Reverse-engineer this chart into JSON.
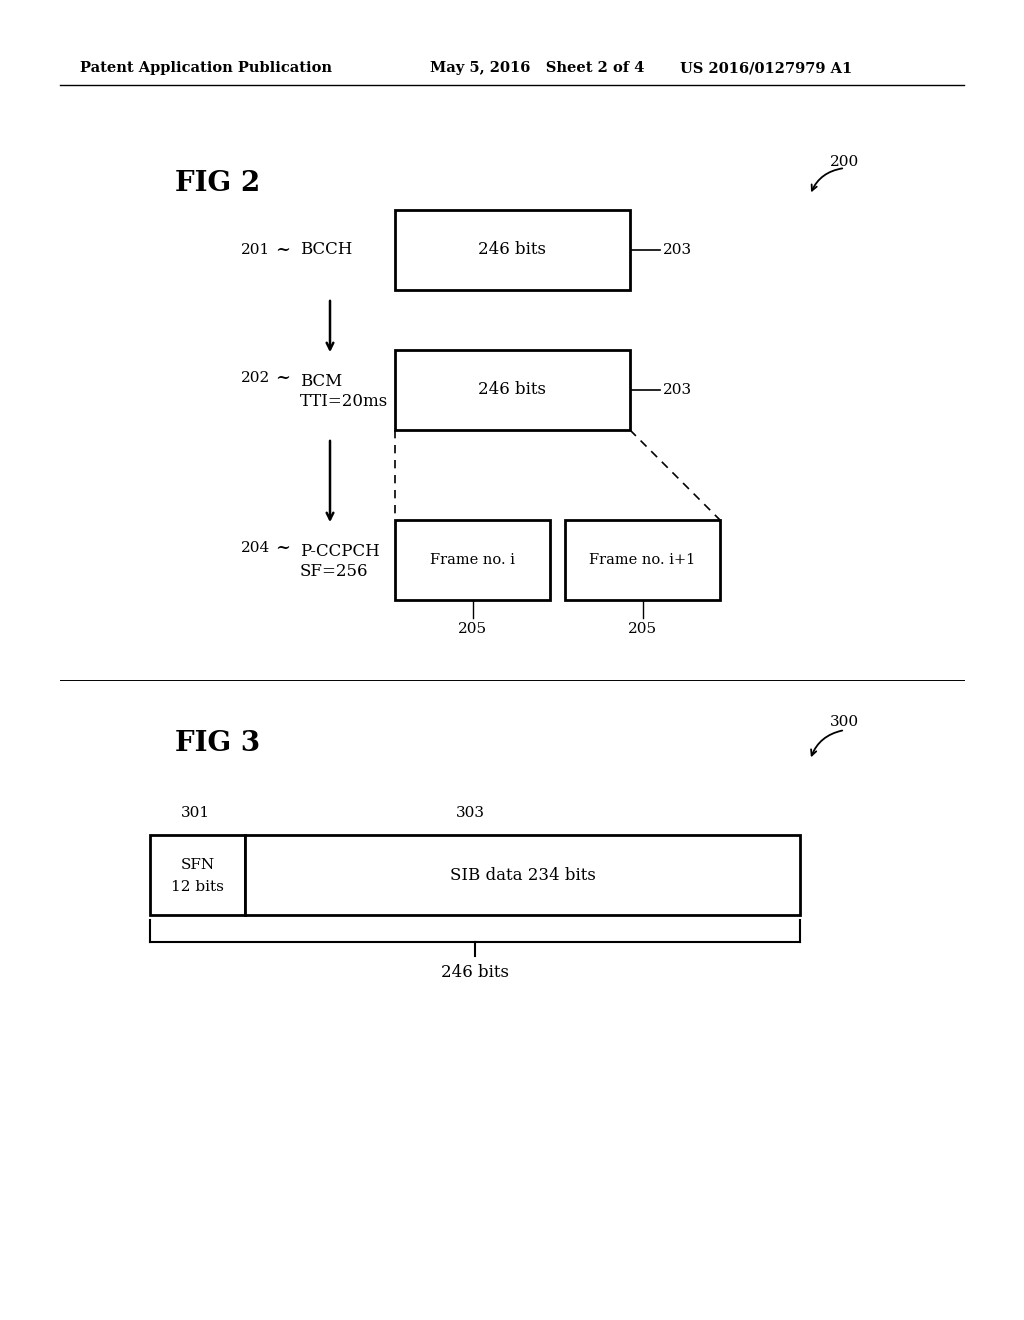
{
  "bg_color": "#ffffff",
  "header_left": "Patent Application Publication",
  "header_mid": "May 5, 2016   Sheet 2 of 4",
  "header_right": "US 2016/0127979 A1",
  "fig2_label": "FIG 2",
  "fig2_ref": "200",
  "fig3_label": "FIG 3",
  "fig3_ref": "300",
  "label_201": "201",
  "label_BCCH": "BCCH",
  "label_202": "202",
  "label_BCM_line1": "BCM",
  "label_BCM_line2": "TTI=20ms",
  "label_204": "204",
  "label_PCCPCH_line1": "P-CCPCH",
  "label_PCCPCH_line2": "SF=256",
  "label_203a": "203",
  "label_203b": "203",
  "label_246a": "246 bits",
  "label_246b": "246 bits",
  "label_frame_i": "Frame no. i",
  "label_frame_i1": "Frame no. i+1",
  "label_205a": "205",
  "label_205b": "205",
  "label_301": "301",
  "label_303": "303",
  "label_SFN_line1": "SFN",
  "label_SFN_line2": "12 bits",
  "label_SIB": "SIB data 234 bits",
  "label_246bits": "246 bits"
}
